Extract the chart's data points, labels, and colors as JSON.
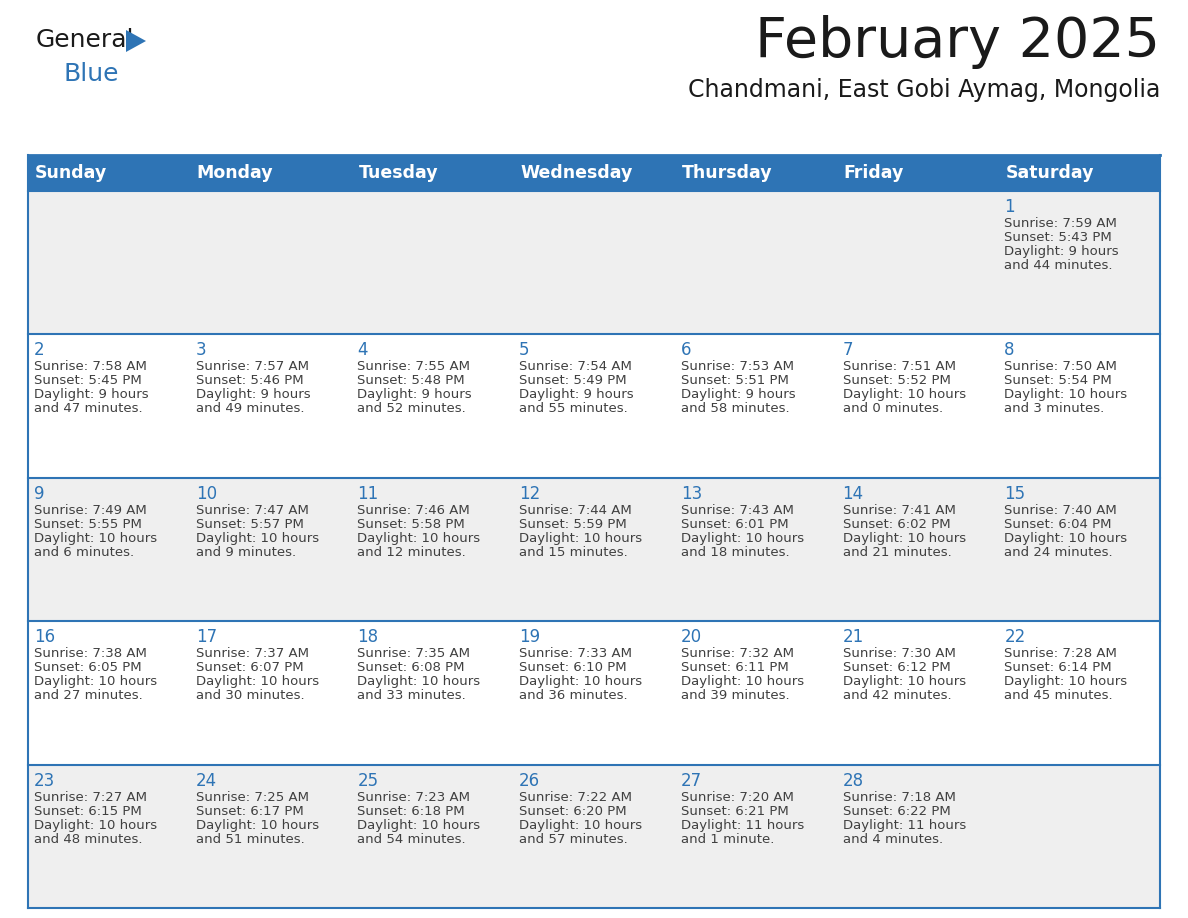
{
  "title": "February 2025",
  "subtitle": "Chandmani, East Gobi Aymag, Mongolia",
  "header_bg": "#2E74B5",
  "header_text": "#FFFFFF",
  "day_names": [
    "Sunday",
    "Monday",
    "Tuesday",
    "Wednesday",
    "Thursday",
    "Friday",
    "Saturday"
  ],
  "row_colors": [
    "#EFEFEF",
    "#FFFFFF",
    "#EFEFEF",
    "#FFFFFF",
    "#EFEFEF"
  ],
  "border_color": "#2E74B5",
  "number_color": "#2E74B5",
  "text_color": "#404040",
  "title_color": "#1A1A1A",
  "subtitle_color": "#1A1A1A",
  "logo_general_color": "#1A1A1A",
  "logo_blue_color": "#2E74B5",
  "days": [
    {
      "day": 1,
      "col": 6,
      "row": 0,
      "sunrise": "7:59 AM",
      "sunset": "5:43 PM",
      "daylight": "9 hours and 44 minutes."
    },
    {
      "day": 2,
      "col": 0,
      "row": 1,
      "sunrise": "7:58 AM",
      "sunset": "5:45 PM",
      "daylight": "9 hours and 47 minutes."
    },
    {
      "day": 3,
      "col": 1,
      "row": 1,
      "sunrise": "7:57 AM",
      "sunset": "5:46 PM",
      "daylight": "9 hours and 49 minutes."
    },
    {
      "day": 4,
      "col": 2,
      "row": 1,
      "sunrise": "7:55 AM",
      "sunset": "5:48 PM",
      "daylight": "9 hours and 52 minutes."
    },
    {
      "day": 5,
      "col": 3,
      "row": 1,
      "sunrise": "7:54 AM",
      "sunset": "5:49 PM",
      "daylight": "9 hours and 55 minutes."
    },
    {
      "day": 6,
      "col": 4,
      "row": 1,
      "sunrise": "7:53 AM",
      "sunset": "5:51 PM",
      "daylight": "9 hours and 58 minutes."
    },
    {
      "day": 7,
      "col": 5,
      "row": 1,
      "sunrise": "7:51 AM",
      "sunset": "5:52 PM",
      "daylight": "10 hours and 0 minutes."
    },
    {
      "day": 8,
      "col": 6,
      "row": 1,
      "sunrise": "7:50 AM",
      "sunset": "5:54 PM",
      "daylight": "10 hours and 3 minutes."
    },
    {
      "day": 9,
      "col": 0,
      "row": 2,
      "sunrise": "7:49 AM",
      "sunset": "5:55 PM",
      "daylight": "10 hours and 6 minutes."
    },
    {
      "day": 10,
      "col": 1,
      "row": 2,
      "sunrise": "7:47 AM",
      "sunset": "5:57 PM",
      "daylight": "10 hours and 9 minutes."
    },
    {
      "day": 11,
      "col": 2,
      "row": 2,
      "sunrise": "7:46 AM",
      "sunset": "5:58 PM",
      "daylight": "10 hours and 12 minutes."
    },
    {
      "day": 12,
      "col": 3,
      "row": 2,
      "sunrise": "7:44 AM",
      "sunset": "5:59 PM",
      "daylight": "10 hours and 15 minutes."
    },
    {
      "day": 13,
      "col": 4,
      "row": 2,
      "sunrise": "7:43 AM",
      "sunset": "6:01 PM",
      "daylight": "10 hours and 18 minutes."
    },
    {
      "day": 14,
      "col": 5,
      "row": 2,
      "sunrise": "7:41 AM",
      "sunset": "6:02 PM",
      "daylight": "10 hours and 21 minutes."
    },
    {
      "day": 15,
      "col": 6,
      "row": 2,
      "sunrise": "7:40 AM",
      "sunset": "6:04 PM",
      "daylight": "10 hours and 24 minutes."
    },
    {
      "day": 16,
      "col": 0,
      "row": 3,
      "sunrise": "7:38 AM",
      "sunset": "6:05 PM",
      "daylight": "10 hours and 27 minutes."
    },
    {
      "day": 17,
      "col": 1,
      "row": 3,
      "sunrise": "7:37 AM",
      "sunset": "6:07 PM",
      "daylight": "10 hours and 30 minutes."
    },
    {
      "day": 18,
      "col": 2,
      "row": 3,
      "sunrise": "7:35 AM",
      "sunset": "6:08 PM",
      "daylight": "10 hours and 33 minutes."
    },
    {
      "day": 19,
      "col": 3,
      "row": 3,
      "sunrise": "7:33 AM",
      "sunset": "6:10 PM",
      "daylight": "10 hours and 36 minutes."
    },
    {
      "day": 20,
      "col": 4,
      "row": 3,
      "sunrise": "7:32 AM",
      "sunset": "6:11 PM",
      "daylight": "10 hours and 39 minutes."
    },
    {
      "day": 21,
      "col": 5,
      "row": 3,
      "sunrise": "7:30 AM",
      "sunset": "6:12 PM",
      "daylight": "10 hours and 42 minutes."
    },
    {
      "day": 22,
      "col": 6,
      "row": 3,
      "sunrise": "7:28 AM",
      "sunset": "6:14 PM",
      "daylight": "10 hours and 45 minutes."
    },
    {
      "day": 23,
      "col": 0,
      "row": 4,
      "sunrise": "7:27 AM",
      "sunset": "6:15 PM",
      "daylight": "10 hours and 48 minutes."
    },
    {
      "day": 24,
      "col": 1,
      "row": 4,
      "sunrise": "7:25 AM",
      "sunset": "6:17 PM",
      "daylight": "10 hours and 51 minutes."
    },
    {
      "day": 25,
      "col": 2,
      "row": 4,
      "sunrise": "7:23 AM",
      "sunset": "6:18 PM",
      "daylight": "10 hours and 54 minutes."
    },
    {
      "day": 26,
      "col": 3,
      "row": 4,
      "sunrise": "7:22 AM",
      "sunset": "6:20 PM",
      "daylight": "10 hours and 57 minutes."
    },
    {
      "day": 27,
      "col": 4,
      "row": 4,
      "sunrise": "7:20 AM",
      "sunset": "6:21 PM",
      "daylight": "11 hours and 1 minute."
    },
    {
      "day": 28,
      "col": 5,
      "row": 4,
      "sunrise": "7:18 AM",
      "sunset": "6:22 PM",
      "daylight": "11 hours and 4 minutes."
    }
  ]
}
